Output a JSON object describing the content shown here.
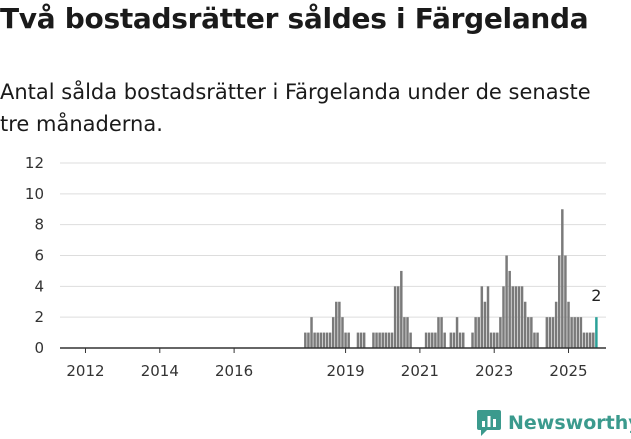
{
  "header": {
    "title": "Två bostadsrätter såldes i Färgelanda",
    "subtitle": "Antal sålda bostadsrätter i Färgelanda under de senaste tre månaderna."
  },
  "brand": {
    "name": "Newsworthy",
    "logo_icon": "bar-chart-logo-icon",
    "color": "#3b9a8d"
  },
  "chart_data": {
    "type": "bar",
    "x_start": "2011-08",
    "x_end": "2025-06",
    "xticks": [
      "2012",
      "2014",
      "2016",
      "2019",
      "2021",
      "2023",
      "2025"
    ],
    "yticks": [
      0,
      2,
      4,
      6,
      8,
      10,
      12
    ],
    "ylim": [
      0,
      12
    ],
    "bar_color": "#7a7a7a",
    "highlight_color": "#2aa198",
    "highlight_label": "2",
    "grid": true,
    "values": [
      {
        "x": "2017-12",
        "y": 1
      },
      {
        "x": "2018-01",
        "y": 1
      },
      {
        "x": "2018-02",
        "y": 2
      },
      {
        "x": "2018-03",
        "y": 1
      },
      {
        "x": "2018-04",
        "y": 1
      },
      {
        "x": "2018-05",
        "y": 1
      },
      {
        "x": "2018-06",
        "y": 1
      },
      {
        "x": "2018-07",
        "y": 1
      },
      {
        "x": "2018-08",
        "y": 1
      },
      {
        "x": "2018-09",
        "y": 2
      },
      {
        "x": "2018-10",
        "y": 3
      },
      {
        "x": "2018-11",
        "y": 3
      },
      {
        "x": "2018-12",
        "y": 2
      },
      {
        "x": "2019-01",
        "y": 1
      },
      {
        "x": "2019-02",
        "y": 1
      },
      {
        "x": "2019-05",
        "y": 1
      },
      {
        "x": "2019-06",
        "y": 1
      },
      {
        "x": "2019-07",
        "y": 1
      },
      {
        "x": "2019-10",
        "y": 1
      },
      {
        "x": "2019-11",
        "y": 1
      },
      {
        "x": "2019-12",
        "y": 1
      },
      {
        "x": "2020-01",
        "y": 1
      },
      {
        "x": "2020-02",
        "y": 1
      },
      {
        "x": "2020-03",
        "y": 1
      },
      {
        "x": "2020-04",
        "y": 1
      },
      {
        "x": "2020-05",
        "y": 4
      },
      {
        "x": "2020-06",
        "y": 4
      },
      {
        "x": "2020-07",
        "y": 5
      },
      {
        "x": "2020-08",
        "y": 2
      },
      {
        "x": "2020-09",
        "y": 2
      },
      {
        "x": "2020-10",
        "y": 1
      },
      {
        "x": "2021-03",
        "y": 1
      },
      {
        "x": "2021-04",
        "y": 1
      },
      {
        "x": "2021-05",
        "y": 1
      },
      {
        "x": "2021-06",
        "y": 1
      },
      {
        "x": "2021-07",
        "y": 2
      },
      {
        "x": "2021-08",
        "y": 2
      },
      {
        "x": "2021-09",
        "y": 1
      },
      {
        "x": "2021-11",
        "y": 1
      },
      {
        "x": "2021-12",
        "y": 1
      },
      {
        "x": "2022-01",
        "y": 2
      },
      {
        "x": "2022-02",
        "y": 1
      },
      {
        "x": "2022-03",
        "y": 1
      },
      {
        "x": "2022-06",
        "y": 1
      },
      {
        "x": "2022-07",
        "y": 2
      },
      {
        "x": "2022-08",
        "y": 2
      },
      {
        "x": "2022-09",
        "y": 4
      },
      {
        "x": "2022-10",
        "y": 3
      },
      {
        "x": "2022-11",
        "y": 4
      },
      {
        "x": "2022-12",
        "y": 1
      },
      {
        "x": "2023-01",
        "y": 1
      },
      {
        "x": "2023-02",
        "y": 1
      },
      {
        "x": "2023-03",
        "y": 2
      },
      {
        "x": "2023-04",
        "y": 4
      },
      {
        "x": "2023-05",
        "y": 6
      },
      {
        "x": "2023-06",
        "y": 5
      },
      {
        "x": "2023-07",
        "y": 4
      },
      {
        "x": "2023-08",
        "y": 4
      },
      {
        "x": "2023-09",
        "y": 4
      },
      {
        "x": "2023-10",
        "y": 4
      },
      {
        "x": "2023-11",
        "y": 3
      },
      {
        "x": "2023-12",
        "y": 2
      },
      {
        "x": "2024-01",
        "y": 2
      },
      {
        "x": "2024-02",
        "y": 1
      },
      {
        "x": "2024-03",
        "y": 1
      },
      {
        "x": "2024-06",
        "y": 2
      },
      {
        "x": "2024-07",
        "y": 2
      },
      {
        "x": "2024-08",
        "y": 2
      },
      {
        "x": "2024-09",
        "y": 3
      },
      {
        "x": "2024-10",
        "y": 6
      },
      {
        "x": "2024-11",
        "y": 9
      },
      {
        "x": "2024-12",
        "y": 6
      },
      {
        "x": "2025-01",
        "y": 3
      },
      {
        "x": "2025-02",
        "y": 2
      },
      {
        "x": "2025-03",
        "y": 2
      },
      {
        "x": "2025-04",
        "y": 2
      },
      {
        "x": "2025-05",
        "y": 2
      },
      {
        "x": "2025-06",
        "y": 1
      },
      {
        "x": "2025-07",
        "y": 1
      },
      {
        "x": "2025-08",
        "y": 1
      },
      {
        "x": "2025-09",
        "y": 1
      },
      {
        "x": "2025-10",
        "y": 2,
        "highlight": true
      }
    ]
  }
}
